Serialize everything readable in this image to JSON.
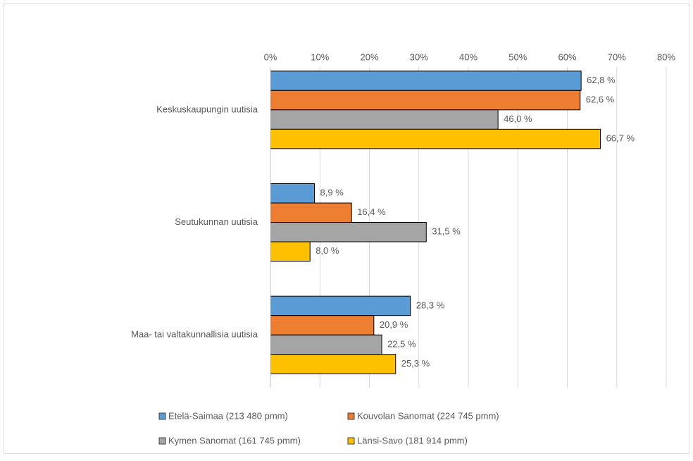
{
  "chart_data": {
    "type": "hbar",
    "categories": [
      "Keskuskaupungin uutisia",
      "Seutukunnan uutisia",
      "Maa- tai valtakunnallisia uutisia"
    ],
    "series": [
      {
        "name": "Etelä-Saimaa (213 480 pmm)",
        "color": "#5b9bd5",
        "values": [
          62.8,
          8.9,
          28.3
        ],
        "value_labels": [
          "62,8 %",
          "8,9 %",
          "28,3 %"
        ]
      },
      {
        "name": "Kouvolan Sanomat (224 745 pmm)",
        "color": "#ed7d31",
        "values": [
          62.6,
          16.4,
          20.9
        ],
        "value_labels": [
          "62,6 %",
          "16,4 %",
          "20,9 %"
        ]
      },
      {
        "name": "Kymen Sanomat (161 745 pmm)",
        "color": "#a5a5a5",
        "values": [
          46.0,
          31.5,
          22.5
        ],
        "value_labels": [
          "46,0 %",
          "31,5 %",
          "22,5 %"
        ]
      },
      {
        "name": "Länsi-Savo (181 914 pmm)",
        "color": "#ffc000",
        "values": [
          66.7,
          8.0,
          25.3
        ],
        "value_labels": [
          "66,7 %",
          "8,0 %",
          "25,3 %"
        ]
      }
    ],
    "xlim": [
      0,
      80
    ],
    "xticks": [
      {
        "value": 0,
        "label": "0%"
      },
      {
        "value": 10,
        "label": "10%"
      },
      {
        "value": 20,
        "label": "20%"
      },
      {
        "value": 30,
        "label": "30%"
      },
      {
        "value": 40,
        "label": "40%"
      },
      {
        "value": 50,
        "label": "50%"
      },
      {
        "value": 60,
        "label": "60%"
      },
      {
        "value": 70,
        "label": "70%"
      },
      {
        "value": 80,
        "label": "80%"
      }
    ],
    "grid": true,
    "legend": "bottom"
  }
}
